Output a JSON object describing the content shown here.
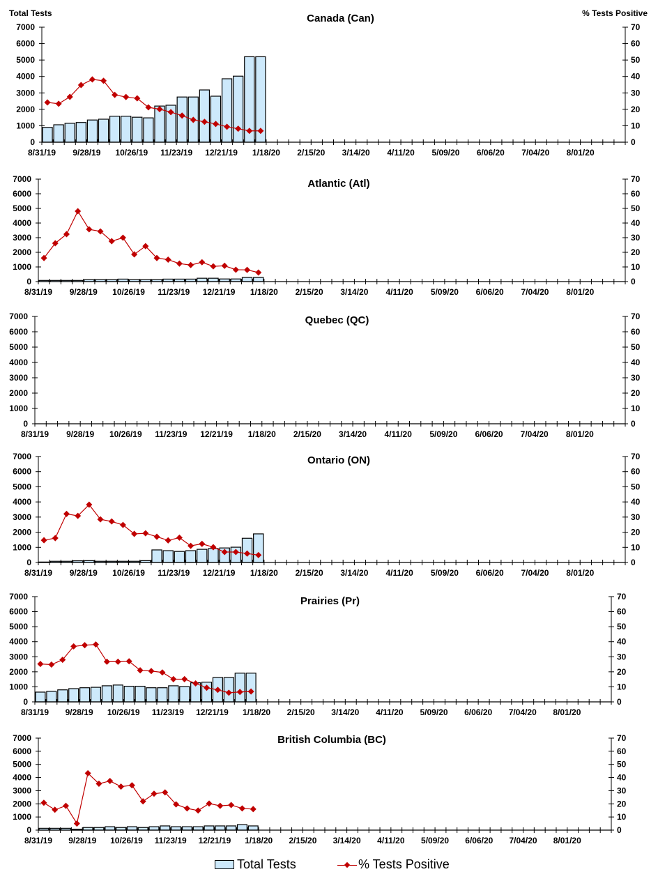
{
  "figure": {
    "left_axis_title": "Total Tests",
    "right_axis_title": "% Tests Positive",
    "legend": {
      "bars_label": "Total Tests",
      "line_label": "% Tests Positive"
    },
    "colors": {
      "bar_fill": "#cde9fb",
      "bar_stroke": "#000000",
      "line": "#c00000"
    }
  },
  "chart_data": [
    {
      "type": "bar+line",
      "title": "Canada (Can)",
      "ylabel": "Total Tests",
      "y2label": "% Tests Positive",
      "ylim": [
        0,
        7000
      ],
      "y2lim": [
        0,
        70
      ],
      "yticks": [
        "0",
        "1000",
        "2000",
        "3000",
        "4000",
        "5000",
        "6000",
        "7000"
      ],
      "y2ticks": [
        "0",
        "10",
        "20",
        "30",
        "40",
        "50",
        "60",
        "70"
      ],
      "xticklabels": [
        "8/31/19",
        "9/28/19",
        "10/26/19",
        "11/23/19",
        "12/21/19",
        "1/18/20",
        "2/15/20",
        "3/14/20",
        "4/11/20",
        "5/09/20",
        "6/06/20",
        "7/04/20",
        "8/01/20"
      ],
      "weeks": 52,
      "total_tests": [
        900,
        1060,
        1150,
        1200,
        1350,
        1400,
        1580,
        1580,
        1520,
        1480,
        2200,
        2250,
        2750,
        2750,
        3180,
        2800,
        3860,
        4020,
        5200,
        5200
      ],
      "pct_positive": [
        24.2,
        23.4,
        27.6,
        34.8,
        38.2,
        37.4,
        28.8,
        27.5,
        26.7,
        21.2,
        20.1,
        18.3,
        16.2,
        13.6,
        12.4,
        11.1,
        9.4,
        8.2,
        6.9,
        6.9
      ]
    },
    {
      "type": "bar+line",
      "title": "Atlantic (Atl)",
      "ylabel": "Total Tests",
      "y2label": "% Tests Positive",
      "ylim": [
        0,
        7000
      ],
      "y2lim": [
        0,
        70
      ],
      "yticks": [
        "0",
        "1000",
        "2000",
        "3000",
        "4000",
        "5000",
        "6000",
        "7000"
      ],
      "y2ticks": [
        "0",
        "10",
        "20",
        "30",
        "40",
        "50",
        "60",
        "70"
      ],
      "xticklabels": [
        "8/31/19",
        "9/28/19",
        "10/26/19",
        "11/23/19",
        "12/21/19",
        "1/18/20",
        "2/15/20",
        "3/14/20",
        "4/11/20",
        "5/09/20",
        "6/06/20",
        "7/04/20",
        "8/01/20"
      ],
      "weeks": 52,
      "total_tests": [
        80,
        80,
        80,
        80,
        130,
        130,
        130,
        170,
        130,
        130,
        130,
        170,
        170,
        170,
        230,
        230,
        180,
        180,
        280,
        280
      ],
      "pct_positive": [
        16.1,
        26.2,
        32.4,
        48.1,
        35.7,
        34.3,
        27.6,
        30.0,
        18.6,
        24.2,
        16.1,
        15.0,
        12.3,
        11.3,
        13.2,
        10.4,
        10.8,
        8.1,
        8.0,
        6.2
      ]
    },
    {
      "type": "bar+line",
      "title": "Quebec (QC)",
      "ylabel": "Total Tests",
      "y2label": "% Tests Positive",
      "ylim": [
        0,
        7000
      ],
      "y2lim": [
        0,
        70
      ],
      "yticks": [
        "0",
        "1000",
        "2000",
        "3000",
        "4000",
        "5000",
        "6000",
        "7000"
      ],
      "y2ticks": [
        "0",
        "10",
        "20",
        "30",
        "40",
        "50",
        "60",
        "70"
      ],
      "xticklabels": [
        "8/31/19",
        "9/28/19",
        "10/26/19",
        "11/23/19",
        "12/21/19",
        "1/18/20",
        "2/15/20",
        "3/14/20",
        "4/11/20",
        "5/09/20",
        "6/06/20",
        "7/04/20",
        "8/01/20"
      ],
      "weeks": 52,
      "total_tests": [],
      "pct_positive": []
    },
    {
      "type": "bar+line",
      "title": "Ontario (ON)",
      "ylabel": "Total Tests",
      "y2label": "% Tests Positive",
      "ylim": [
        0,
        7000
      ],
      "y2lim": [
        0,
        70
      ],
      "yticks": [
        "0",
        "1000",
        "2000",
        "3000",
        "4000",
        "5000",
        "6000",
        "7000"
      ],
      "y2ticks": [
        "0",
        "10",
        "20",
        "30",
        "40",
        "50",
        "60",
        "70"
      ],
      "xticklabels": [
        "8/31/19",
        "9/28/19",
        "10/26/19",
        "11/23/19",
        "12/21/19",
        "1/18/20",
        "2/15/20",
        "3/14/20",
        "4/11/20",
        "5/09/20",
        "6/06/20",
        "7/04/20",
        "8/01/20"
      ],
      "weeks": 52,
      "total_tests": [
        30,
        80,
        80,
        110,
        120,
        80,
        80,
        80,
        80,
        120,
        830,
        780,
        730,
        780,
        870,
        920,
        960,
        1010,
        1600,
        1890
      ],
      "pct_positive": [
        14.7,
        16.1,
        32.1,
        30.8,
        38.2,
        28.5,
        27.1,
        24.8,
        18.9,
        19.3,
        17.0,
        14.6,
        16.4,
        11.0,
        12.3,
        10.1,
        6.9,
        6.9,
        5.9,
        4.9
      ]
    },
    {
      "type": "bar+line",
      "title": "Prairies (Pr)",
      "ylabel": "Total Tests",
      "y2label": "% Tests Positive",
      "ylim": [
        0,
        7000
      ],
      "y2lim": [
        0,
        70
      ],
      "yticks": [
        "0",
        "1000",
        "2000",
        "3000",
        "4000",
        "5000",
        "6000",
        "7000"
      ],
      "y2ticks": [
        "0",
        "10",
        "20",
        "30",
        "40",
        "50",
        "60",
        "70"
      ],
      "xticklabels": [
        "8/31/19",
        "9/28/19",
        "10/26/19",
        "11/23/19",
        "12/21/19",
        "1/18/20",
        "2/15/20",
        "3/14/20",
        "4/11/20",
        "5/09/20",
        "6/06/20",
        "7/04/20",
        "8/01/20"
      ],
      "weeks": 52,
      "total_tests": [
        650,
        700,
        800,
        880,
        940,
        970,
        1070,
        1120,
        1040,
        1040,
        940,
        940,
        1070,
        1020,
        1270,
        1310,
        1620,
        1620,
        1910,
        1910
      ],
      "pct_positive": [
        25.2,
        24.8,
        28.0,
        36.9,
        37.7,
        38.2,
        26.7,
        26.7,
        27.0,
        21.0,
        20.5,
        19.6,
        15.1,
        15.1,
        12.3,
        9.4,
        8.0,
        6.1,
        6.6,
        6.9
      ]
    },
    {
      "type": "bar+line",
      "title": "British Columbia (BC)",
      "ylabel": "Total Tests",
      "y2label": "% Tests Positive",
      "ylim": [
        0,
        7000
      ],
      "y2lim": [
        0,
        70
      ],
      "yticks": [
        "0",
        "1000",
        "2000",
        "3000",
        "4000",
        "5000",
        "6000",
        "7000"
      ],
      "y2ticks": [
        "0",
        "10",
        "20",
        "30",
        "40",
        "50",
        "60",
        "70"
      ],
      "xticklabels": [
        "8/31/19",
        "9/28/19",
        "10/26/19",
        "11/23/19",
        "12/21/19",
        "1/18/20",
        "2/15/20",
        "3/14/20",
        "4/11/20",
        "5/09/20",
        "6/06/20",
        "7/04/20",
        "8/01/20"
      ],
      "weeks": 52,
      "total_tests": [
        140,
        140,
        140,
        70,
        200,
        200,
        260,
        200,
        260,
        200,
        260,
        320,
        260,
        260,
        260,
        320,
        320,
        320,
        420,
        320
      ],
      "pct_positive": [
        20.8,
        15.5,
        18.5,
        5.0,
        43.3,
        35.3,
        37.4,
        33.1,
        34.1,
        21.9,
        27.7,
        28.7,
        19.6,
        16.5,
        14.9,
        20.2,
        18.5,
        19.1,
        16.5,
        16.0
      ]
    }
  ]
}
